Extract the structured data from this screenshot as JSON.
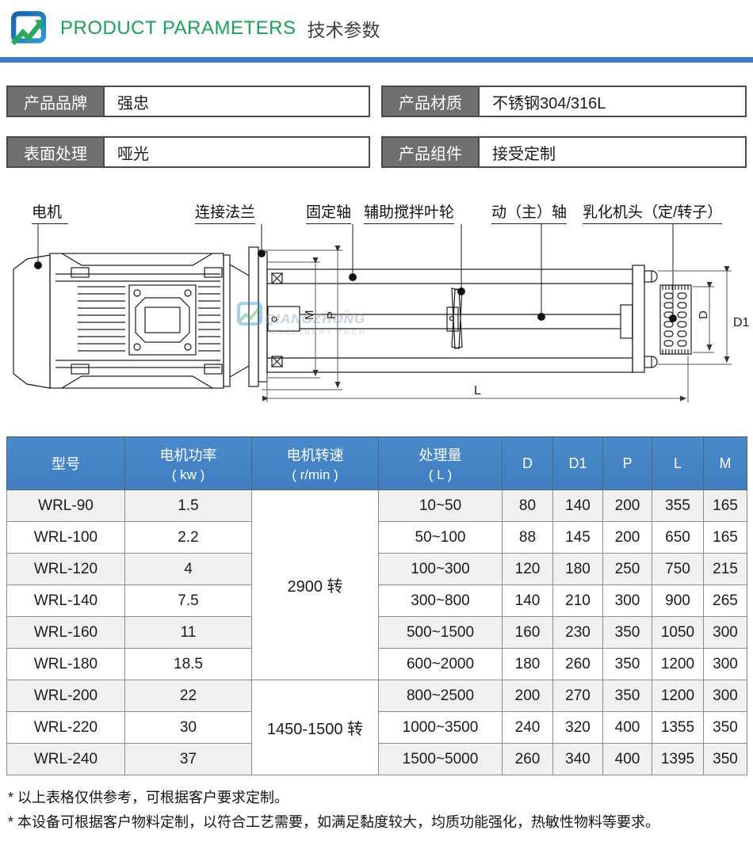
{
  "header": {
    "title_en": "PRODUCT PARAMETERS",
    "title_zh": "技术参数",
    "logo_blue": "#1c6fb8",
    "logo_green": "#2aa85c",
    "accent_bar_color": "#3d7cbd",
    "title_green": "#17a15c"
  },
  "specs": [
    {
      "label": "产品品牌",
      "value": "强忠"
    },
    {
      "label": "产品材质",
      "value": "不锈钢304/316L"
    },
    {
      "label": "表面处理",
      "value": "哑光"
    },
    {
      "label": "产品组件",
      "value": "接受定制"
    }
  ],
  "diagram": {
    "labels": [
      {
        "text": "电机"
      },
      {
        "text": "连接法兰"
      },
      {
        "text": "固定轴"
      },
      {
        "text": "辅助搅拌叶轮"
      },
      {
        "text": "动（主）轴"
      },
      {
        "text": "乳化机头（定/转子）"
      }
    ],
    "dims": {
      "m": "M",
      "p": "P",
      "d": "D",
      "d1": "D1",
      "l": "L"
    },
    "watermark": {
      "line1": "QIANGZHONG",
      "line2": "MACHINERY TECH",
      "reg": "®"
    }
  },
  "table": {
    "header_blue": "#4282c3",
    "columns": [
      {
        "label": "型号"
      },
      {
        "label": "电机功率",
        "sub": "( kw )"
      },
      {
        "label": "电机转速",
        "sub": "( r/min )"
      },
      {
        "label": "处理量",
        "sub": "( L )"
      },
      {
        "label": "D"
      },
      {
        "label": "D1"
      },
      {
        "label": "P"
      },
      {
        "label": "L"
      },
      {
        "label": "M"
      }
    ],
    "speed_groups": [
      {
        "label": "2900 转",
        "span": 6
      },
      {
        "label": "1450-1500 转",
        "span": 3
      }
    ],
    "rows": [
      [
        "WRL-90",
        "1.5",
        "10~50",
        "80",
        "140",
        "200",
        "355",
        "165"
      ],
      [
        "WRL-100",
        "2.2",
        "50~100",
        "88",
        "145",
        "200",
        "650",
        "165"
      ],
      [
        "WRL-120",
        "4",
        "100~300",
        "120",
        "180",
        "250",
        "750",
        "215"
      ],
      [
        "WRL-140",
        "7.5",
        "300~800",
        "140",
        "210",
        "300",
        "900",
        "265"
      ],
      [
        "WRL-160",
        "11",
        "500~1500",
        "160",
        "230",
        "350",
        "1050",
        "300"
      ],
      [
        "WRL-180",
        "18.5",
        "600~2000",
        "180",
        "260",
        "350",
        "1200",
        "300"
      ],
      [
        "WRL-200",
        "22",
        "800~2500",
        "200",
        "270",
        "350",
        "1200",
        "300"
      ],
      [
        "WRL-220",
        "30",
        "1000~3500",
        "240",
        "320",
        "400",
        "1355",
        "350"
      ],
      [
        "WRL-240",
        "37",
        "1500~5000",
        "260",
        "340",
        "400",
        "1395",
        "350"
      ]
    ]
  },
  "notes": [
    "* 以上表格仅供参考，可根据客户要求定制。",
    "* 本设备可根据客户物料定制，以符合工艺需要，如满足黏度较大，均质功能强化，热敏性物料等要求。"
  ]
}
